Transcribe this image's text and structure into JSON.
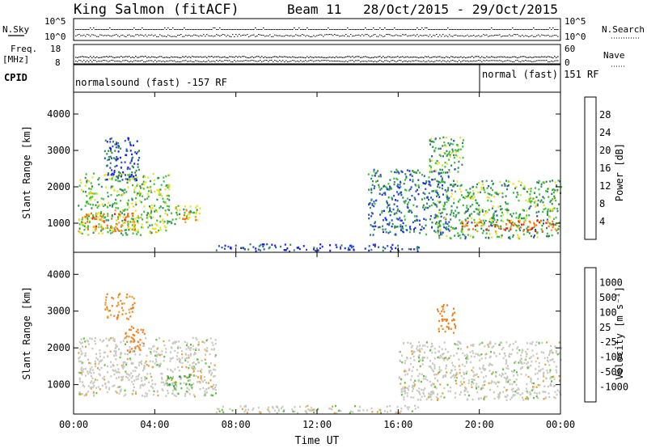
{
  "title": {
    "station": "King Salmon (fitACF)",
    "beam": "Beam 11",
    "dates": "28/Oct/2015 - 29/Oct/2015"
  },
  "header_panels": {
    "nsky": {
      "label": "N.Sky",
      "ticks": [
        "10^5",
        "10^0"
      ]
    },
    "nsearch": {
      "label": "N.Search",
      "ticks": [
        "10^5",
        "10^0"
      ]
    },
    "freq": {
      "label_line1": "Freq.",
      "label_line2": "[MHz]",
      "ticks": [
        "18",
        "8"
      ]
    },
    "nave": {
      "label": "Nave",
      "ticks": [
        "60",
        "0"
      ]
    },
    "cpid": {
      "label": "CPID",
      "modes": [
        "normalsound (fast) -157 RF",
        "normal (fast) 151 RF"
      ]
    }
  },
  "axes": {
    "x_label": "Time UT",
    "x_ticks": [
      "00:00",
      "04:00",
      "08:00",
      "12:00",
      "16:00",
      "20:00",
      "00:00"
    ],
    "y_label": "Slant Range [km]",
    "y_ticks": [
      "1000",
      "2000",
      "3000",
      "4000"
    ]
  },
  "colorbars": {
    "power": {
      "label": "Power [dB]",
      "ticks": [
        "4",
        "8",
        "12",
        "16",
        "20",
        "24",
        "28"
      ],
      "colors": [
        "#1a1aff",
        "#2a4fc0",
        "#2f8a5a",
        "#3cbf3c",
        "#e8e020",
        "#f0a020",
        "#f07010",
        "#e82010"
      ]
    },
    "velocity": {
      "label": "Velocity [m s⁻¹]",
      "ticks": [
        "1000",
        "500",
        "100",
        "25",
        "-25",
        "-100",
        "-500",
        "-1000"
      ],
      "colors": [
        "#2040c0",
        "#3060b0",
        "#2f8a5a",
        "#5cc040",
        "#c8c8c0",
        "#e8a030",
        "#f08020",
        "#f04020",
        "#e81010"
      ]
    }
  },
  "chart_data": [
    {
      "type": "heatmap",
      "title": "Power",
      "xlabel": "Time UT",
      "ylabel": "Slant Range [km]",
      "xlim": [
        0,
        24
      ],
      "ylim": [
        200,
        4600
      ],
      "colorbar_range": [
        0,
        30
      ],
      "regions": [
        {
          "t": [
            0.2,
            4.7
          ],
          "range_km": [
            700,
            2400
          ],
          "value_db": 14
        },
        {
          "t": [
            0.3,
            3.0
          ],
          "range_km": [
            800,
            1300
          ],
          "value_db": 22
        },
        {
          "t": [
            1.5,
            3.2
          ],
          "range_km": [
            2200,
            3400
          ],
          "value_db": 6
        },
        {
          "t": [
            4.5,
            6.2
          ],
          "range_km": [
            1000,
            1500
          ],
          "value_db": 14
        },
        {
          "t": [
            5.0,
            6.0
          ],
          "range_km": [
            1100,
            1400
          ],
          "value_db": 20
        },
        {
          "t": [
            14.5,
            18.5
          ],
          "range_km": [
            700,
            2500
          ],
          "value_db": 8
        },
        {
          "t": [
            17.8,
            24.0
          ],
          "range_km": [
            600,
            2200
          ],
          "value_db": 12
        },
        {
          "t": [
            19.0,
            24.0
          ],
          "range_km": [
            800,
            1100
          ],
          "value_db": 24
        },
        {
          "t": [
            17.5,
            19.2
          ],
          "range_km": [
            2400,
            3400
          ],
          "value_db": 12
        },
        {
          "t": [
            7.0,
            17.0
          ],
          "range_km": [
            250,
            450
          ],
          "value_db": 5
        }
      ]
    },
    {
      "type": "heatmap",
      "title": "Velocity",
      "xlabel": "Time UT",
      "ylabel": "Slant Range [km]",
      "xlim": [
        0,
        24
      ],
      "ylim": [
        200,
        4600
      ],
      "colorbar_range": [
        -1000,
        1000
      ],
      "regions": [
        {
          "t": [
            0.2,
            7.0
          ],
          "range_km": [
            700,
            2300
          ],
          "value_ms": 0
        },
        {
          "t": [
            4.5,
            5.8
          ],
          "range_km": [
            900,
            1300
          ],
          "value_ms": 80
        },
        {
          "t": [
            5.8,
            6.3
          ],
          "range_km": [
            1200,
            1400
          ],
          "value_ms": -100
        },
        {
          "t": [
            2.5,
            3.5
          ],
          "range_km": [
            1900,
            2600
          ],
          "value_ms": -200
        },
        {
          "t": [
            1.5,
            3.0
          ],
          "range_km": [
            2800,
            3500
          ],
          "value_ms": -100
        },
        {
          "t": [
            16.0,
            24.0
          ],
          "range_km": [
            600,
            2200
          ],
          "value_ms": 0
        },
        {
          "t": [
            17.8,
            18.8
          ],
          "range_km": [
            2400,
            3200
          ],
          "value_ms": -300
        },
        {
          "t": [
            7.0,
            17.0
          ],
          "range_km": [
            250,
            450
          ],
          "value_ms": 0
        }
      ]
    }
  ]
}
